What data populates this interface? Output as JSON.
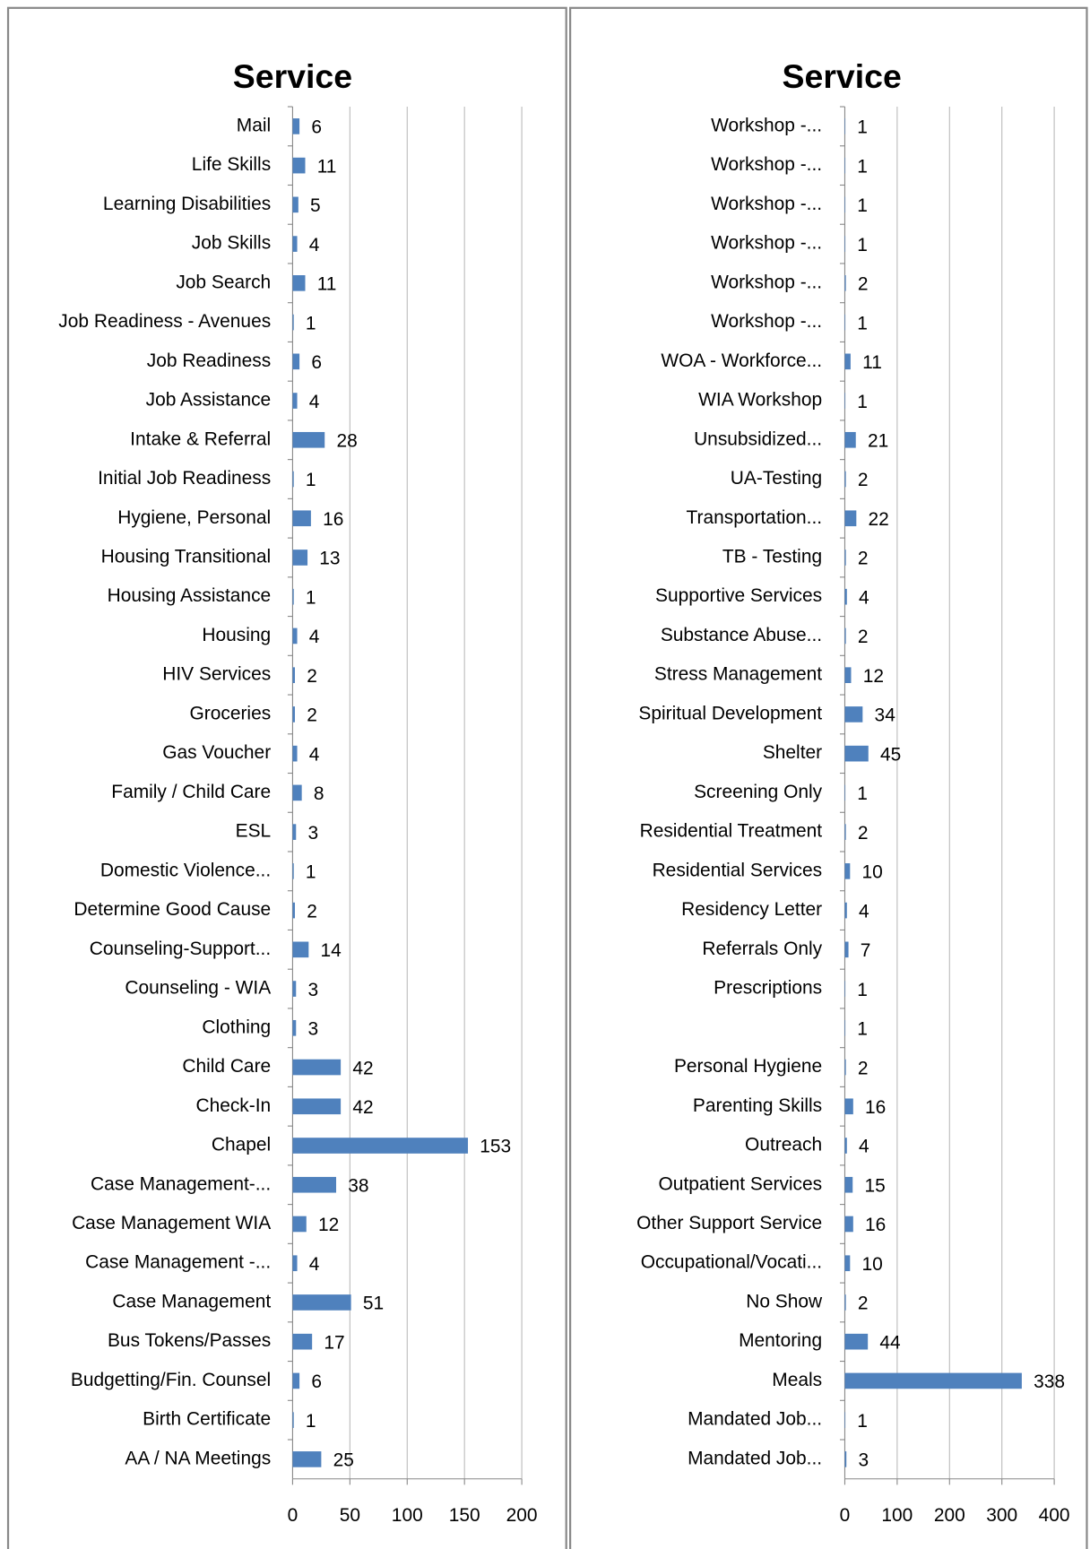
{
  "chart_data": [
    {
      "type": "bar",
      "orientation": "horizontal",
      "title": "Service",
      "color": "#4f81bd",
      "grid": true,
      "categories": [
        "Mail",
        "Life Skills",
        "Learning Disabilities",
        "Job Skills",
        "Job Search",
        "Job Readiness - Avenues",
        "Job Readiness",
        "Job Assistance",
        "Intake & Referral",
        "Initial Job Readiness",
        "Hygiene, Personal",
        "Housing Transitional",
        "Housing Assistance",
        "Housing",
        "HIV Services",
        "Groceries",
        "Gas Voucher",
        "Family / Child Care",
        "ESL",
        "Domestic Violence...",
        "Determine Good Cause",
        "Counseling-Support...",
        "Counseling - WIA",
        "Clothing",
        "Child Care",
        "Check-In",
        "Chapel",
        "Case Management-...",
        "Case Management WIA",
        "Case Management -...",
        "Case Management",
        "Bus Tokens/Passes",
        "Budgetting/Fin. Counsel",
        "Birth Certificate",
        "AA / NA Meetings"
      ],
      "values": [
        6,
        11,
        5,
        4,
        11,
        1,
        6,
        4,
        28,
        1,
        16,
        13,
        1,
        4,
        2,
        2,
        4,
        8,
        3,
        1,
        2,
        14,
        3,
        3,
        42,
        42,
        153,
        38,
        12,
        4,
        51,
        17,
        6,
        1,
        25
      ],
      "xlim": [
        0,
        200
      ],
      "xticks": [
        0,
        50,
        100,
        150,
        200
      ]
    },
    {
      "type": "bar",
      "orientation": "horizontal",
      "title": "Service",
      "color": "#4f81bd",
      "grid": true,
      "categories": [
        "Workshop -...",
        "Workshop -...",
        "Workshop -...",
        "Workshop -...",
        "Workshop -...",
        "Workshop -...",
        "WOA - Workforce...",
        "WIA Workshop",
        "Unsubsidized...",
        "UA-Testing",
        "Transportation...",
        "TB - Testing",
        "Supportive Services",
        "Substance Abuse...",
        "Stress Management",
        "Spiritual Development",
        "Shelter",
        "Screening Only",
        "Residential Treatment",
        "Residential Services",
        "Residency Letter",
        "Referrals Only",
        "Prescriptions",
        null,
        "Personal Hygiene",
        "Parenting Skills",
        "Outreach",
        "Outpatient Services",
        "Other Support Service",
        "Occupational/Vocati...",
        "No Show",
        "Mentoring",
        "Meals",
        "Mandated Job...",
        "Mandated Job..."
      ],
      "values": [
        1,
        1,
        1,
        1,
        2,
        1,
        11,
        1,
        21,
        2,
        22,
        2,
        4,
        2,
        12,
        34,
        45,
        1,
        2,
        10,
        4,
        7,
        1,
        1,
        2,
        16,
        4,
        15,
        16,
        10,
        2,
        44,
        338,
        1,
        3
      ],
      "xlim": [
        0,
        400
      ],
      "xticks": [
        0,
        100,
        200,
        300,
        400
      ]
    }
  ]
}
